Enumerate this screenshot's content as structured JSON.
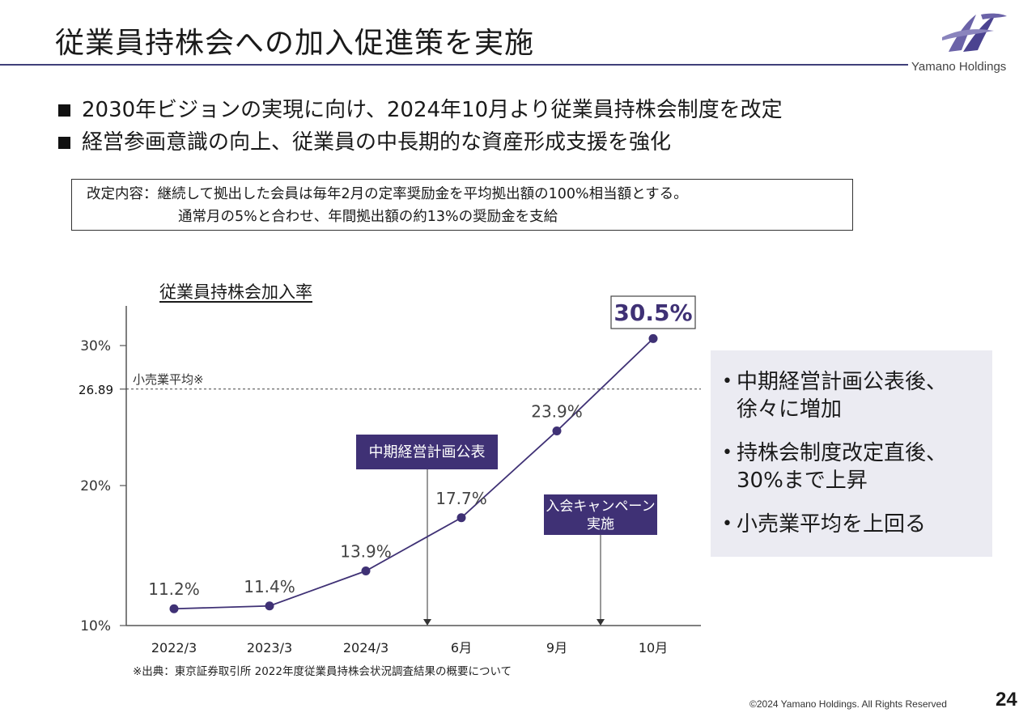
{
  "slide": {
    "title": "従業員持株会への加入促進策を実施",
    "logo_text": "Yamano Holdings",
    "bullets": [
      "2030年ビジョンの実現に向け、2024年10月より従業員持株会制度を改定",
      "経営参画意識の向上、従業員の中長期的な資産形成支援を強化"
    ],
    "revision_box": {
      "line1": "改定内容：継続して拠出した会員は毎年2月の定率奨励金を平均拠出額の100%相当額とする。",
      "line2": "通常月の5%と合わせ、年間拠出額の約13%の奨励金を支給"
    },
    "summary_points": [
      "中期経営計画公表後、\n徐々に増加",
      "持株会制度改定直後、\n30%まで上昇",
      "小売業平均を上回る"
    ],
    "copyright": "©2024 Yamano Holdings. All Rights Reserved",
    "page_number": "24"
  },
  "chart_data": {
    "type": "line",
    "title": "従業員持株会加入率",
    "categories": [
      "2022/3",
      "2023/3",
      "2024/3",
      "6月",
      "9月",
      "10月"
    ],
    "values": [
      11.2,
      11.4,
      13.9,
      17.7,
      23.9,
      30.5
    ],
    "value_labels": [
      "11.2%",
      "11.4%",
      "13.9%",
      "17.7%",
      "23.9%",
      "30.5%"
    ],
    "y_ticks": [
      {
        "value": 10,
        "label": "10%"
      },
      {
        "value": 20,
        "label": "20%"
      },
      {
        "value": 30,
        "label": "30%"
      }
    ],
    "ylim": [
      10,
      32.8
    ],
    "reference_line": {
      "value": 26.89,
      "label": "26.89",
      "note": "小売業平均※"
    },
    "annotations": [
      {
        "text": "中期経営計画公表",
        "at_between": [
          2,
          3
        ]
      },
      {
        "text": "入会キャンペーン\n実施",
        "at_between": [
          4,
          5
        ]
      }
    ],
    "footnote": "※出典：東京証券取引所 2022年度従業員持株会状況調査結果の概要について",
    "colors": {
      "line": "#3f3175",
      "marker": "#3f3175",
      "callout_fill": "#3f3175",
      "callout_text": "#ffffff",
      "axis": "#555555",
      "reference": "#444444"
    }
  }
}
